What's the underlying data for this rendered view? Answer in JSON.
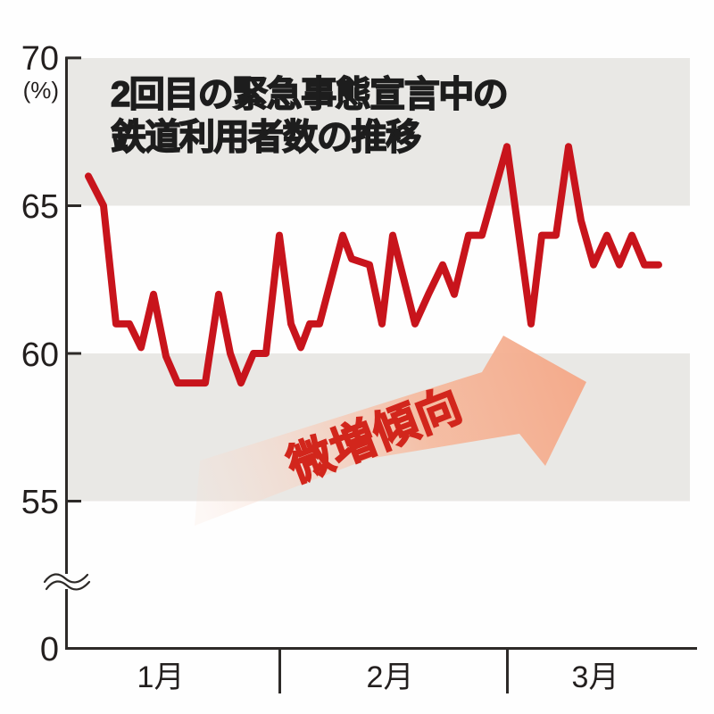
{
  "title": {
    "line1": "2回目の緊急事態宣言中の",
    "line2": "鉄道利用者数の推移"
  },
  "y_axis": {
    "unit": "(%)",
    "labels": [
      "70",
      "65",
      "60",
      "55",
      "0"
    ]
  },
  "x_axis": {
    "labels": [
      "1月",
      "2月",
      "3月"
    ]
  },
  "annotation": {
    "label": "微増傾向"
  },
  "colors": {
    "line": "#c8141c",
    "band": "#e9e8e5",
    "axis": "#2d2a28",
    "annotation_text": "#d2261c",
    "arrow_tail": "#f9ded2",
    "arrow_head": "#f4ab8c"
  },
  "chart_data": {
    "type": "line",
    "title": "2回目の緊急事態宣言中の鉄道利用者数の推移",
    "ylabel": "%",
    "y_ticks": [
      70,
      65,
      60,
      55,
      0
    ],
    "ylim_visible": [
      55,
      70
    ],
    "axis_break": true,
    "grid": "alternating horizontal gray bands 65-70 and 55-60",
    "x_months": [
      "1月",
      "2月",
      "3月"
    ],
    "annotation": "微増傾向",
    "bands": [
      [
        70,
        65
      ],
      [
        60,
        55
      ]
    ],
    "series": [
      {
        "name": "鉄道利用者数 (%)",
        "values": [
          66,
          65,
          61,
          61,
          60,
          62,
          60,
          59,
          59,
          59,
          62,
          60,
          59,
          60,
          60,
          64,
          61,
          60,
          61,
          61,
          64,
          63,
          63,
          61,
          64,
          61,
          62,
          63,
          62,
          64,
          64,
          67,
          61,
          64,
          64,
          67,
          64.5,
          63,
          64,
          63,
          64,
          63,
          63
        ]
      }
    ],
    "points": [
      [
        99,
        66
      ],
      [
        116,
        65
      ],
      [
        130,
        61
      ],
      [
        145,
        61
      ],
      [
        158,
        60.2
      ],
      [
        172,
        62
      ],
      [
        186,
        59.9
      ],
      [
        199,
        59
      ],
      [
        213,
        59
      ],
      [
        230,
        59
      ],
      [
        245,
        62
      ],
      [
        258,
        60
      ],
      [
        270,
        59
      ],
      [
        284,
        60
      ],
      [
        298,
        60
      ],
      [
        313,
        64
      ],
      [
        326,
        61
      ],
      [
        337,
        60.2
      ],
      [
        347,
        61
      ],
      [
        358,
        61
      ],
      [
        384,
        64
      ],
      [
        394,
        63.2
      ],
      [
        414,
        63
      ],
      [
        428,
        61
      ],
      [
        440,
        64
      ],
      [
        465,
        61
      ],
      [
        480,
        62
      ],
      [
        496,
        63
      ],
      [
        509,
        62
      ],
      [
        525,
        64
      ],
      [
        540,
        64
      ],
      [
        568,
        67
      ],
      [
        595,
        61
      ],
      [
        607,
        64
      ],
      [
        623,
        64
      ],
      [
        637,
        67
      ],
      [
        651,
        64.5
      ],
      [
        665,
        63
      ],
      [
        680,
        64
      ],
      [
        694,
        63
      ],
      [
        708,
        64
      ],
      [
        722,
        63
      ],
      [
        738,
        63
      ]
    ]
  }
}
